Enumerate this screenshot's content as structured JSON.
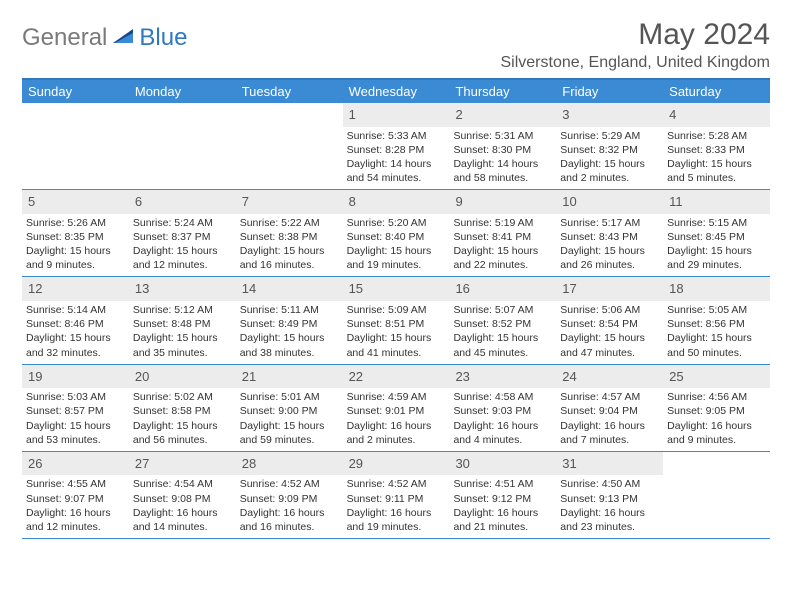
{
  "brand": {
    "gray": "General",
    "blue": "Blue"
  },
  "title": "May 2024",
  "location": "Silverstone, England, United Kingdom",
  "colors": {
    "header_blue": "#3b8bd4",
    "border_blue": "#2f78c2",
    "daynum_bg": "#ececec",
    "text_gray": "#555555",
    "logo_gray": "#7a7a7a",
    "logo_blue": "#2f78c2"
  },
  "day_names": [
    "Sunday",
    "Monday",
    "Tuesday",
    "Wednesday",
    "Thursday",
    "Friday",
    "Saturday"
  ],
  "weeks": [
    [
      {
        "n": "",
        "sr": "",
        "ss": "",
        "dl": ""
      },
      {
        "n": "",
        "sr": "",
        "ss": "",
        "dl": ""
      },
      {
        "n": "",
        "sr": "",
        "ss": "",
        "dl": ""
      },
      {
        "n": "1",
        "sr": "Sunrise: 5:33 AM",
        "ss": "Sunset: 8:28 PM",
        "dl": "Daylight: 14 hours and 54 minutes."
      },
      {
        "n": "2",
        "sr": "Sunrise: 5:31 AM",
        "ss": "Sunset: 8:30 PM",
        "dl": "Daylight: 14 hours and 58 minutes."
      },
      {
        "n": "3",
        "sr": "Sunrise: 5:29 AM",
        "ss": "Sunset: 8:32 PM",
        "dl": "Daylight: 15 hours and 2 minutes."
      },
      {
        "n": "4",
        "sr": "Sunrise: 5:28 AM",
        "ss": "Sunset: 8:33 PM",
        "dl": "Daylight: 15 hours and 5 minutes."
      }
    ],
    [
      {
        "n": "5",
        "sr": "Sunrise: 5:26 AM",
        "ss": "Sunset: 8:35 PM",
        "dl": "Daylight: 15 hours and 9 minutes."
      },
      {
        "n": "6",
        "sr": "Sunrise: 5:24 AM",
        "ss": "Sunset: 8:37 PM",
        "dl": "Daylight: 15 hours and 12 minutes."
      },
      {
        "n": "7",
        "sr": "Sunrise: 5:22 AM",
        "ss": "Sunset: 8:38 PM",
        "dl": "Daylight: 15 hours and 16 minutes."
      },
      {
        "n": "8",
        "sr": "Sunrise: 5:20 AM",
        "ss": "Sunset: 8:40 PM",
        "dl": "Daylight: 15 hours and 19 minutes."
      },
      {
        "n": "9",
        "sr": "Sunrise: 5:19 AM",
        "ss": "Sunset: 8:41 PM",
        "dl": "Daylight: 15 hours and 22 minutes."
      },
      {
        "n": "10",
        "sr": "Sunrise: 5:17 AM",
        "ss": "Sunset: 8:43 PM",
        "dl": "Daylight: 15 hours and 26 minutes."
      },
      {
        "n": "11",
        "sr": "Sunrise: 5:15 AM",
        "ss": "Sunset: 8:45 PM",
        "dl": "Daylight: 15 hours and 29 minutes."
      }
    ],
    [
      {
        "n": "12",
        "sr": "Sunrise: 5:14 AM",
        "ss": "Sunset: 8:46 PM",
        "dl": "Daylight: 15 hours and 32 minutes."
      },
      {
        "n": "13",
        "sr": "Sunrise: 5:12 AM",
        "ss": "Sunset: 8:48 PM",
        "dl": "Daylight: 15 hours and 35 minutes."
      },
      {
        "n": "14",
        "sr": "Sunrise: 5:11 AM",
        "ss": "Sunset: 8:49 PM",
        "dl": "Daylight: 15 hours and 38 minutes."
      },
      {
        "n": "15",
        "sr": "Sunrise: 5:09 AM",
        "ss": "Sunset: 8:51 PM",
        "dl": "Daylight: 15 hours and 41 minutes."
      },
      {
        "n": "16",
        "sr": "Sunrise: 5:07 AM",
        "ss": "Sunset: 8:52 PM",
        "dl": "Daylight: 15 hours and 45 minutes."
      },
      {
        "n": "17",
        "sr": "Sunrise: 5:06 AM",
        "ss": "Sunset: 8:54 PM",
        "dl": "Daylight: 15 hours and 47 minutes."
      },
      {
        "n": "18",
        "sr": "Sunrise: 5:05 AM",
        "ss": "Sunset: 8:56 PM",
        "dl": "Daylight: 15 hours and 50 minutes."
      }
    ],
    [
      {
        "n": "19",
        "sr": "Sunrise: 5:03 AM",
        "ss": "Sunset: 8:57 PM",
        "dl": "Daylight: 15 hours and 53 minutes."
      },
      {
        "n": "20",
        "sr": "Sunrise: 5:02 AM",
        "ss": "Sunset: 8:58 PM",
        "dl": "Daylight: 15 hours and 56 minutes."
      },
      {
        "n": "21",
        "sr": "Sunrise: 5:01 AM",
        "ss": "Sunset: 9:00 PM",
        "dl": "Daylight: 15 hours and 59 minutes."
      },
      {
        "n": "22",
        "sr": "Sunrise: 4:59 AM",
        "ss": "Sunset: 9:01 PM",
        "dl": "Daylight: 16 hours and 2 minutes."
      },
      {
        "n": "23",
        "sr": "Sunrise: 4:58 AM",
        "ss": "Sunset: 9:03 PM",
        "dl": "Daylight: 16 hours and 4 minutes."
      },
      {
        "n": "24",
        "sr": "Sunrise: 4:57 AM",
        "ss": "Sunset: 9:04 PM",
        "dl": "Daylight: 16 hours and 7 minutes."
      },
      {
        "n": "25",
        "sr": "Sunrise: 4:56 AM",
        "ss": "Sunset: 9:05 PM",
        "dl": "Daylight: 16 hours and 9 minutes."
      }
    ],
    [
      {
        "n": "26",
        "sr": "Sunrise: 4:55 AM",
        "ss": "Sunset: 9:07 PM",
        "dl": "Daylight: 16 hours and 12 minutes."
      },
      {
        "n": "27",
        "sr": "Sunrise: 4:54 AM",
        "ss": "Sunset: 9:08 PM",
        "dl": "Daylight: 16 hours and 14 minutes."
      },
      {
        "n": "28",
        "sr": "Sunrise: 4:52 AM",
        "ss": "Sunset: 9:09 PM",
        "dl": "Daylight: 16 hours and 16 minutes."
      },
      {
        "n": "29",
        "sr": "Sunrise: 4:52 AM",
        "ss": "Sunset: 9:11 PM",
        "dl": "Daylight: 16 hours and 19 minutes."
      },
      {
        "n": "30",
        "sr": "Sunrise: 4:51 AM",
        "ss": "Sunset: 9:12 PM",
        "dl": "Daylight: 16 hours and 21 minutes."
      },
      {
        "n": "31",
        "sr": "Sunrise: 4:50 AM",
        "ss": "Sunset: 9:13 PM",
        "dl": "Daylight: 16 hours and 23 minutes."
      },
      {
        "n": "",
        "sr": "",
        "ss": "",
        "dl": ""
      }
    ]
  ]
}
